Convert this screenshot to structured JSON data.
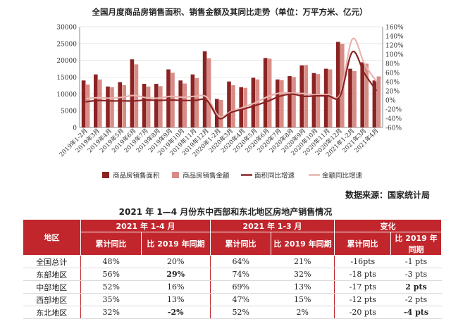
{
  "chart_data": {
    "type": "bar",
    "title": "全国月度商品房销售面积、销售金额及其同比走势（单位：万平方米、亿元）",
    "categories": [
      "2019年1-2月",
      "2019年3月",
      "2019年4月",
      "2019年5月",
      "2019年6月",
      "2019年7月",
      "2019年8月",
      "2019年9月",
      "2019年10月",
      "2019年11月",
      "2019年12月",
      "2020年1-2月",
      "2020年3月",
      "2020年4月",
      "2020年5月",
      "2020年6月",
      "2020年7月",
      "2020年8月",
      "2020年9月",
      "2020年10月",
      "2020年11月",
      "2020年12月",
      "2021年1-2月",
      "2021年3月",
      "2021年4月"
    ],
    "y_left": {
      "min": 0,
      "max": 30000,
      "ticks": [
        "0",
        "5000",
        "10000",
        "15000",
        "20000",
        "25000",
        "30000"
      ]
    },
    "y_right": {
      "min": -60,
      "max": 160,
      "ticks": [
        "-60%",
        "-40%",
        "-20%",
        "0%",
        "20%",
        "40%",
        "60%",
        "80%",
        "100%",
        "120%",
        "140%",
        "160%"
      ]
    },
    "series": [
      {
        "name": "商品房销售面积",
        "axis": "left",
        "kind": "bar",
        "color": "#8b2323",
        "values": [
          14000,
          15800,
          12200,
          13500,
          20300,
          13000,
          13000,
          17300,
          14000,
          15800,
          22700,
          8500,
          13700,
          12000,
          14800,
          20700,
          14300,
          15300,
          18500,
          16200,
          17500,
          25500,
          17500,
          19400,
          14000
        ]
      },
      {
        "name": "商品房销售金额",
        "axis": "left",
        "kind": "bar",
        "color": "#d98c86",
        "values": [
          12800,
          14300,
          12000,
          12600,
          18800,
          12200,
          12300,
          16300,
          13100,
          14700,
          20600,
          8200,
          12600,
          11800,
          14300,
          20500,
          14100,
          15000,
          18600,
          15900,
          17300,
          24900,
          16800,
          19000,
          15200
        ]
      },
      {
        "name": "面积同比增速",
        "axis": "right",
        "kind": "line",
        "color": "#8b2323",
        "values": [
          -4,
          -1,
          -2,
          -2,
          -2,
          0,
          -1,
          0,
          -1,
          -1,
          -1,
          -40,
          -27,
          -20,
          -12,
          -3,
          8,
          13,
          8,
          9,
          9,
          9,
          105,
          58,
          20
        ]
      },
      {
        "name": "金额同比增速",
        "axis": "right",
        "kind": "line",
        "color": "#e8b4b0",
        "values": [
          3,
          5,
          4,
          6,
          10,
          5,
          4,
          8,
          6,
          8,
          6,
          -36,
          -25,
          -16,
          -6,
          7,
          15,
          15,
          14,
          11,
          12,
          13,
          133,
          79,
          40
        ]
      }
    ]
  },
  "source": "数据来源：国家统计局",
  "table": {
    "title": "2021 年 1—4 月份东中西部和东北地区房地产销售情况",
    "h_region": "地区",
    "h_group1": "2021 年 1-4 月",
    "h_group2": "2021 年 1-3 月",
    "h_group3": "变化",
    "h_cum": "累计同比",
    "h_vs2019": "比 2019 年同期",
    "rows": [
      {
        "region": "全国总计",
        "a": "48%",
        "b": "20%",
        "c": "64%",
        "d": "21%",
        "e": "-16pts",
        "f": "-1 pts"
      },
      {
        "region": "东部地区",
        "a": "56%",
        "b": "29%",
        "c": "74%",
        "d": "32%",
        "e": "-18 pts",
        "f": "-3 pts"
      },
      {
        "region": "中部地区",
        "a": "52%",
        "b": "16%",
        "c": "69%",
        "d": "13%",
        "e": "-17 pts",
        "f": "2 pts"
      },
      {
        "region": "西部地区",
        "a": "35%",
        "b": "13%",
        "c": "47%",
        "d": "15%",
        "e": "-12 pts",
        "f": "-2 pts"
      },
      {
        "region": "东北地区",
        "a": "32%",
        "b": "-2%",
        "c": "52%",
        "d": "2%",
        "e": "-20 pts",
        "f": "-4 pts"
      }
    ]
  }
}
